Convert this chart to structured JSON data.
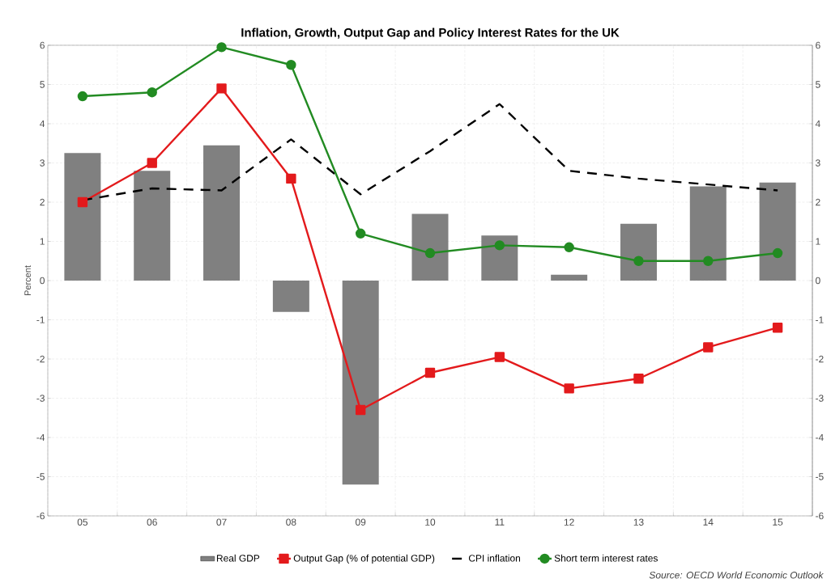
{
  "chart_data": {
    "type": "bar",
    "title": "Inflation, Growth, Output Gap and Policy Interest Rates for the UK",
    "ylabel": "Percent",
    "categories": [
      "05",
      "06",
      "07",
      "08",
      "09",
      "10",
      "11",
      "12",
      "13",
      "14",
      "15"
    ],
    "series": [
      {
        "name": "Real GDP",
        "color": "#808080",
        "values": [
          3.25,
          2.8,
          3.45,
          -0.8,
          -5.2,
          1.7,
          1.15,
          0.15,
          1.45,
          2.4,
          2.5
        ]
      },
      {
        "name": "Output Gap (% of potential GDP)",
        "type": "line",
        "color": "#e31a1c",
        "marker": "square",
        "line_style": "solid",
        "values": [
          2.0,
          3.0,
          4.9,
          2.6,
          -3.3,
          -2.35,
          -1.95,
          -2.75,
          -2.5,
          -1.7,
          -1.2
        ]
      },
      {
        "name": "CPI inflation",
        "type": "line",
        "color": "#000000",
        "marker": "none",
        "line_style": "dashed",
        "values": [
          2.05,
          2.35,
          2.3,
          3.6,
          2.2,
          3.3,
          4.5,
          2.8,
          2.6,
          2.45,
          2.3
        ]
      },
      {
        "name": "Short term interest rates",
        "type": "line",
        "color": "#228b22",
        "marker": "circle",
        "line_style": "solid",
        "values": [
          4.7,
          4.8,
          5.95,
          5.5,
          1.2,
          0.7,
          0.9,
          0.85,
          0.5,
          0.5,
          0.7
        ]
      }
    ],
    "ylim": [
      -6,
      6
    ],
    "yticks": [
      -6,
      -5,
      -4,
      -3,
      -2,
      -1,
      0,
      1,
      2,
      3,
      4,
      5,
      6
    ],
    "y2lim": [
      -6,
      6
    ],
    "y2ticks": [
      -6,
      -5,
      -4,
      -3,
      -2,
      -1,
      0,
      1,
      2,
      3,
      4,
      5,
      6
    ],
    "grid": true,
    "legend": "bottom",
    "annotations": [
      "Source: OECD World Economic Outlook"
    ]
  }
}
